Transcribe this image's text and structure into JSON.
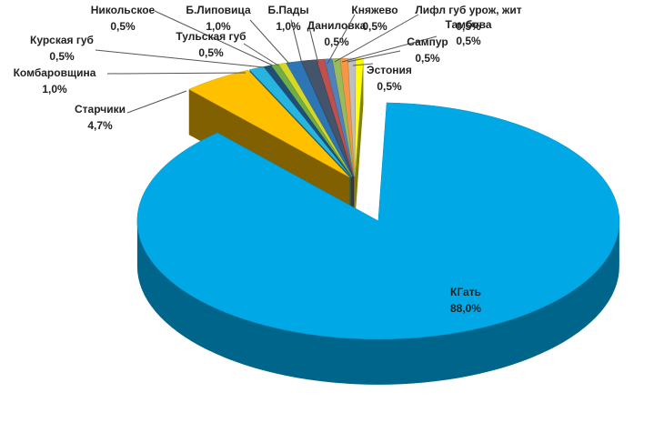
{
  "chart_data": {
    "type": "pie",
    "categories": [
      "КГать",
      "Старчики",
      "Комбаровщина",
      "Курская губ",
      "Никольское",
      "Тульская губ",
      "Б.Липовица",
      "Б.Пады",
      "Даниловка",
      "Княжево",
      "Лифл губ урож, жит",
      "Тамбова",
      "Сампур",
      "Эстония"
    ],
    "values": [
      88.0,
      4.7,
      1.0,
      0.5,
      0.5,
      0.5,
      1.0,
      1.0,
      0.5,
      0.5,
      0.5,
      0.5,
      0.5,
      0.5
    ],
    "value_labels": [
      "88,0%",
      "4,7%",
      "1,0%",
      "0,5%",
      "0,5%",
      "0,5%",
      "1,0%",
      "1,0%",
      "0,5%",
      "0,5%",
      "0,5%",
      "0,5%",
      "0,5%",
      "0,5%"
    ],
    "colors": [
      "#00a9e6",
      "#ffc000",
      "#27b5e0",
      "#1f4e79",
      "#70ad47",
      "#d4d62a",
      "#2e75b6",
      "#44546a",
      "#c0504d",
      "#4f81bd",
      "#9bbb59",
      "#f79646",
      "#bfbfbf",
      "#ffff00"
    ]
  }
}
